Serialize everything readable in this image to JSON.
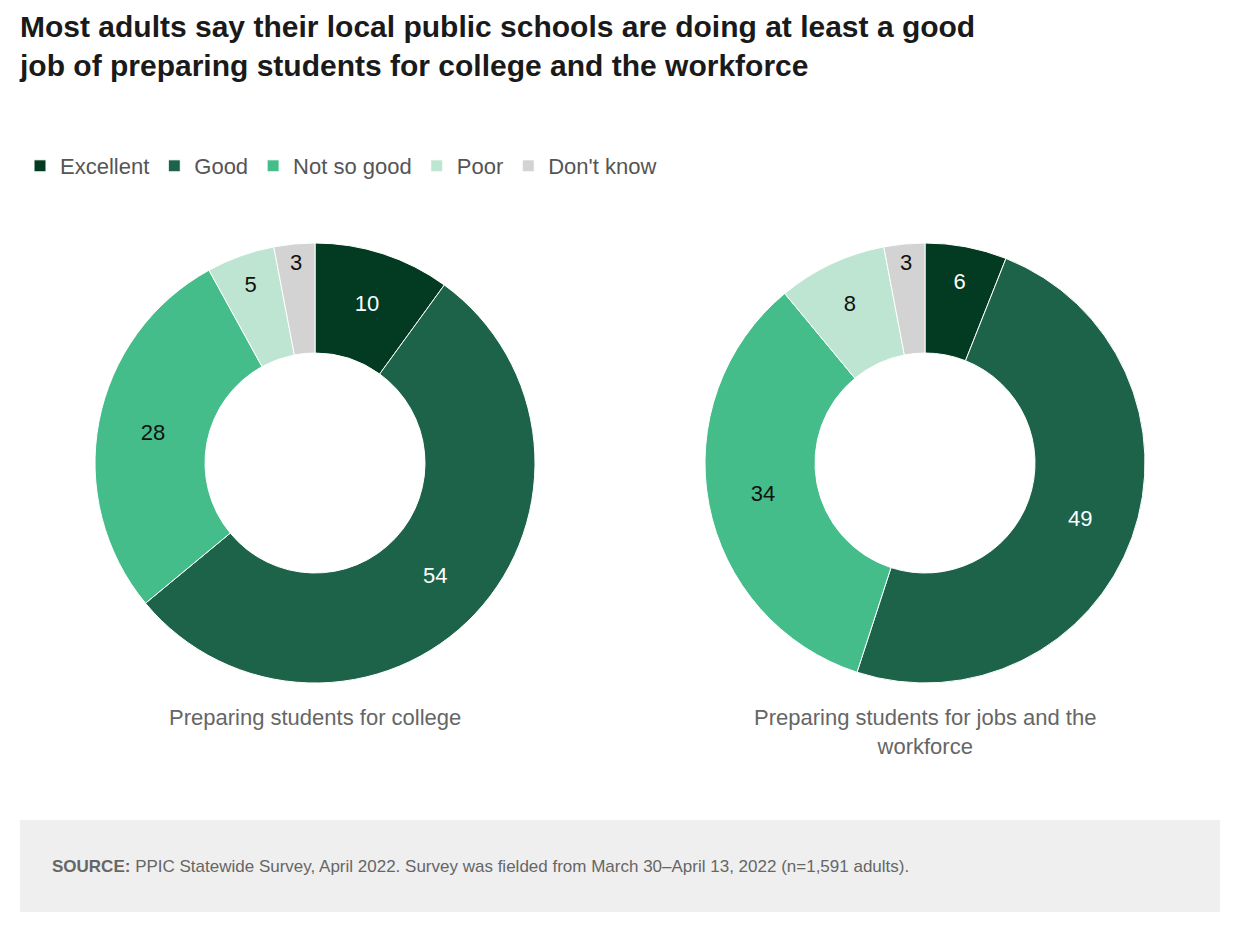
{
  "title": "Most adults say their local public schools are doing at least a good job of preparing students for college and the workforce",
  "source": {
    "label": "SOURCE:",
    "text": "PPIC Statewide Survey, April 2022. Survey was fielded from March 30–April 13, 2022 (n=1,591 adults)."
  },
  "chart_data": [
    {
      "type": "pie",
      "title": "Preparing students for college",
      "categories": [
        "Excellent",
        "Good",
        "Not so good",
        "Poor",
        "Don't know"
      ],
      "values": [
        10,
        54,
        28,
        5,
        3
      ],
      "colors": [
        "#033a22",
        "#1c634a",
        "#45bd8a",
        "#bde5d2",
        "#d3d3d3"
      ],
      "data_labels": true,
      "legend": "top-left"
    },
    {
      "type": "pie",
      "title": "Preparing students for jobs and the workforce",
      "categories": [
        "Excellent",
        "Good",
        "Not so good",
        "Poor",
        "Don't know"
      ],
      "values": [
        6,
        49,
        34,
        8,
        3
      ],
      "colors": [
        "#033a22",
        "#1c634a",
        "#45bd8a",
        "#bde5d2",
        "#d3d3d3"
      ],
      "data_labels": true,
      "legend": "top-left"
    }
  ]
}
